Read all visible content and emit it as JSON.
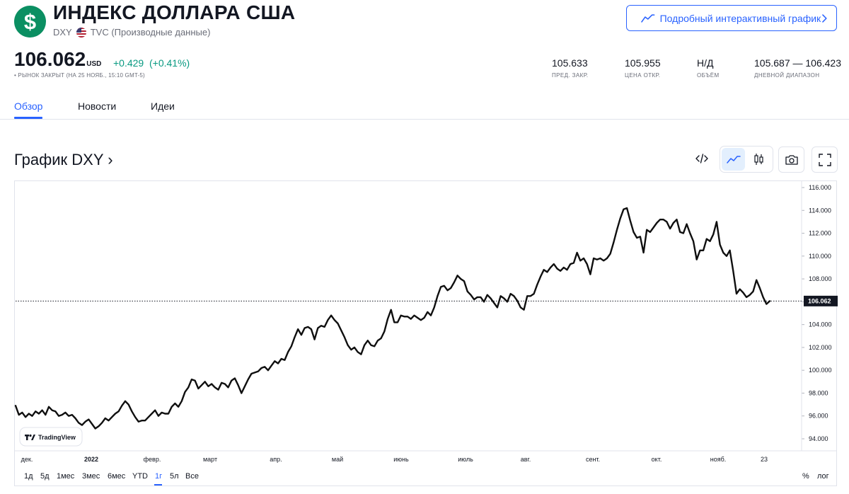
{
  "header": {
    "logo_symbol": "$",
    "title": "ИНДЕКС ДОЛЛАРА США",
    "ticker": "DXY",
    "flag_icon": "us-flag-icon",
    "source": "TVC (Производные данные)",
    "interactive_button": "Подробный интерактивный график"
  },
  "quote": {
    "price": "106.062",
    "currency": "USD",
    "change": "+0.429",
    "change_pct": "(+0.41%)",
    "status": "• РЫНОК ЗАКРЫТ (НА 25 НОЯБ., 15:10 GMT-5)",
    "up_color": "#089981"
  },
  "stats": [
    {
      "value": "105.633",
      "label": "ПРЕД. ЗАКР."
    },
    {
      "value": "105.955",
      "label": "ЦЕНА ОТКР."
    },
    {
      "value": "Н/Д",
      "label": "ОБЪЁМ"
    },
    {
      "value": "105.687 — 106.423",
      "label": "ДНЕВНОЙ ДИАПАЗОН"
    }
  ],
  "tabs": [
    "Обзор",
    "Новости",
    "Идеи"
  ],
  "chart_section": {
    "title": "График DXY ›",
    "tools": [
      "embed-code-icon",
      "line-chart-icon",
      "candles-icon",
      "camera-icon",
      "fullscreen-icon"
    ],
    "watermark": "TradingView",
    "last_value_label": "106.062",
    "ranges": [
      "1д",
      "5д",
      "1мес",
      "3мес",
      "6мес",
      "YTD",
      "1г",
      "5л",
      "Все"
    ],
    "active_range": "1г",
    "scale_buttons": [
      "%",
      "лог"
    ]
  },
  "chart_data": {
    "type": "line",
    "ylim": [
      93.5,
      116.5
    ],
    "y_ticks": [
      "116.000",
      "114.000",
      "112.000",
      "110.000",
      "108.000",
      "106.000",
      "104.000",
      "102.000",
      "100.000",
      "98.000",
      "96.000",
      "94.000"
    ],
    "x_labels": [
      "дек.",
      "2022",
      "февр.",
      "март",
      "апр.",
      "май",
      "июнь",
      "июль",
      "авг.",
      "сент.",
      "окт.",
      "нояб.",
      "23"
    ],
    "last_value": 106.062,
    "values": [
      96.9,
      96.1,
      96.3,
      95.9,
      96.2,
      96.0,
      96.4,
      96.2,
      96.5,
      96.1,
      96.8,
      96.5,
      96.4,
      96.0,
      96.1,
      96.3,
      96.0,
      96.1,
      95.8,
      95.4,
      95.2,
      95.5,
      95.7,
      95.3,
      94.9,
      95.1,
      95.4,
      95.8,
      95.6,
      95.9,
      96.2,
      96.4,
      96.9,
      97.3,
      97.0,
      96.4,
      95.9,
      95.5,
      95.6,
      95.6,
      95.9,
      96.2,
      96.5,
      96.0,
      96.3,
      96.2,
      96.2,
      96.8,
      97.1,
      96.8,
      97.3,
      98.1,
      98.5,
      99.2,
      99.1,
      98.4,
      98.7,
      99.0,
      98.6,
      98.8,
      98.5,
      98.3,
      98.9,
      98.8,
      98.5,
      99.1,
      99.3,
      98.7,
      98.0,
      98.6,
      99.2,
      99.7,
      99.8,
      99.9,
      100.2,
      100.3,
      100.0,
      100.4,
      100.8,
      100.6,
      101.0,
      100.9,
      101.6,
      102.1,
      102.9,
      103.6,
      103.1,
      103.7,
      103.8,
      103.6,
      102.7,
      103.7,
      103.9,
      103.8,
      104.4,
      104.8,
      104.4,
      104.1,
      103.5,
      102.9,
      102.2,
      101.8,
      102.0,
      101.6,
      101.4,
      102.2,
      102.6,
      102.2,
      102.1,
      102.6,
      102.8,
      103.4,
      104.5,
      105.3,
      104.2,
      104.2,
      104.8,
      104.7,
      104.7,
      104.5,
      104.8,
      104.6,
      104.4,
      104.6,
      105.1,
      104.8,
      105.5,
      106.5,
      107.3,
      107.4,
      107.0,
      107.2,
      107.7,
      108.3,
      108.0,
      107.8,
      106.9,
      106.6,
      106.2,
      106.4,
      106.4,
      106.0,
      106.6,
      106.3,
      105.9,
      105.5,
      106.5,
      106.3,
      106.0,
      106.7,
      106.5,
      106.1,
      105.5,
      105.3,
      106.5,
      106.5,
      106.7,
      107.5,
      108.2,
      108.8,
      108.6,
      109.0,
      109.3,
      108.9,
      108.7,
      109.0,
      108.8,
      109.3,
      109.4,
      110.3,
      109.6,
      109.8,
      109.3,
      108.4,
      109.8,
      109.7,
      109.8,
      109.6,
      109.8,
      110.2,
      111.2,
      112.3,
      113.3,
      114.1,
      114.2,
      113.1,
      112.1,
      111.6,
      111.7,
      110.3,
      112.3,
      112.1,
      112.5,
      112.9,
      113.2,
      113.2,
      113.0,
      112.4,
      112.9,
      113.2,
      112.1,
      112.0,
      112.8,
      112.0,
      111.3,
      109.7,
      110.5,
      110.5,
      111.5,
      111.3,
      111.9,
      113.0,
      111.0,
      110.3,
      110.0,
      110.5,
      108.7,
      106.7,
      107.1,
      106.8,
      106.4,
      106.6,
      106.9,
      107.9,
      107.2,
      106.4,
      105.8,
      106.06
    ]
  }
}
